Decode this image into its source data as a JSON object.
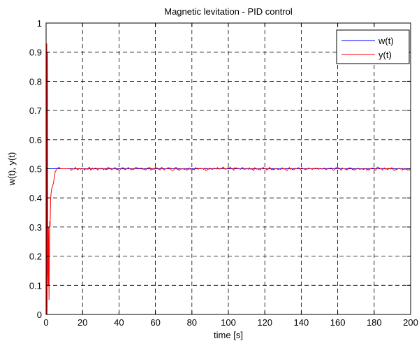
{
  "chart_data": {
    "type": "line",
    "title": "Magnetic levitation - PID control",
    "xlabel": "time [s]",
    "ylabel": "w(t), y(t)",
    "xlim": [
      0,
      200
    ],
    "ylim": [
      0,
      1
    ],
    "x_ticks": [
      0,
      20,
      40,
      60,
      80,
      100,
      120,
      140,
      160,
      180,
      200
    ],
    "y_ticks": [
      0,
      0.1,
      0.2,
      0.3,
      0.4,
      0.5,
      0.6,
      0.7,
      0.8,
      0.9,
      1
    ],
    "grid": true,
    "grid_style": "dashed",
    "legend_position": "top-right",
    "series": [
      {
        "name": "w(t)",
        "color": "#0000ff",
        "x": [
          0,
          200
        ],
        "y": [
          0.5,
          0.5
        ]
      },
      {
        "name": "y(t)",
        "color": "#ff0000",
        "x": [
          0,
          0.2,
          0.4,
          0.6,
          0.8,
          1.0,
          1.2,
          1.4,
          1.6,
          1.8,
          2.0,
          2.2,
          2.5,
          3.0,
          3.5,
          4.0,
          4.5,
          5.0,
          6.0,
          7.0,
          8.0,
          10,
          12,
          200
        ],
        "y": [
          0.5,
          0.0,
          0.93,
          0.0,
          0.9,
          0.15,
          0.1,
          0.3,
          0.05,
          0.2,
          0.32,
          0.3,
          0.4,
          0.43,
          0.44,
          0.45,
          0.47,
          0.49,
          0.5,
          0.505,
          0.5,
          0.5,
          0.5,
          0.5
        ],
        "noise_amplitude": 0.004
      }
    ]
  }
}
